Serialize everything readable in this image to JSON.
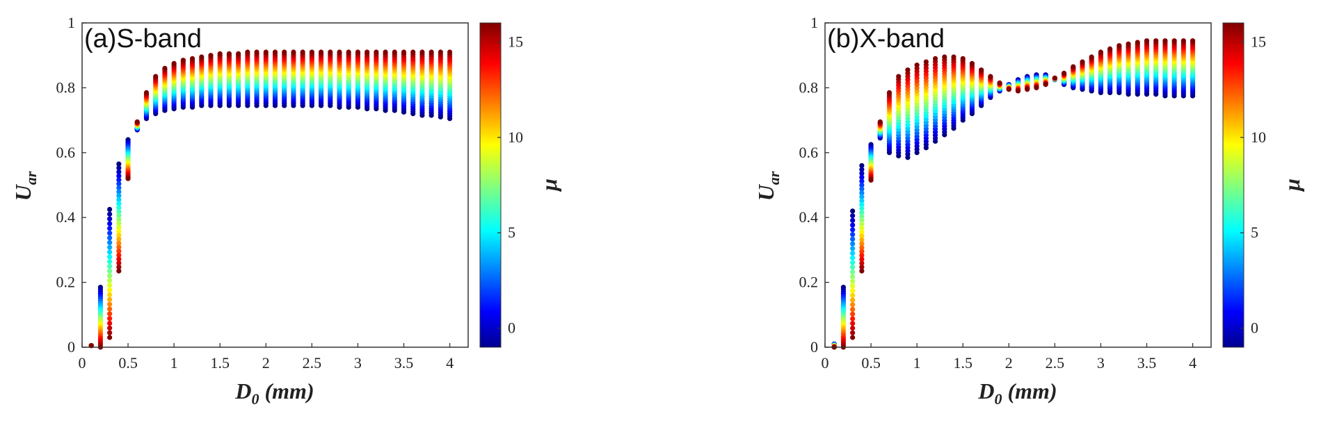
{
  "chart_data": [
    {
      "type": "scatter",
      "title": "(a)S-band",
      "xlabel_main": "D",
      "xlabel_sub": "0",
      "xlabel_unit": " (mm)",
      "ylabel_main": "U",
      "ylabel_sub": "ar",
      "colorbar_label": "μ",
      "xlim": [
        0,
        4.2
      ],
      "ylim": [
        0,
        1
      ],
      "xticks": [
        "0",
        "0.5",
        "1",
        "1.5",
        "2",
        "2.5",
        "3",
        "3.5",
        "4"
      ],
      "yticks": [
        "0",
        "0.2",
        "0.4",
        "0.6",
        "0.8",
        "1"
      ],
      "colorbar_ticks": [
        "0",
        "5",
        "10",
        "15"
      ],
      "colorbar_range": [
        -1,
        16
      ],
      "colormap": "jet",
      "series": [
        {
          "x": 0.1,
          "y_at_mu_min": 0.005,
          "y_at_mu_max": 0.005
        },
        {
          "x": 0.2,
          "y_at_mu_min": 0.185,
          "y_at_mu_max": 0.0
        },
        {
          "x": 0.3,
          "y_at_mu_min": 0.425,
          "y_at_mu_max": 0.03
        },
        {
          "x": 0.4,
          "y_at_mu_min": 0.565,
          "y_at_mu_max": 0.235
        },
        {
          "x": 0.5,
          "y_at_mu_min": 0.64,
          "y_at_mu_max": 0.52
        },
        {
          "x": 0.6,
          "y_at_mu_min": 0.67,
          "y_at_mu_max": 0.695
        },
        {
          "x": 0.7,
          "y_at_mu_min": 0.705,
          "y_at_mu_max": 0.785
        },
        {
          "x": 0.8,
          "y_at_mu_min": 0.72,
          "y_at_mu_max": 0.835
        },
        {
          "x": 0.9,
          "y_at_mu_min": 0.73,
          "y_at_mu_max": 0.86
        },
        {
          "x": 1.0,
          "y_at_mu_min": 0.735,
          "y_at_mu_max": 0.875
        },
        {
          "x": 1.1,
          "y_at_mu_min": 0.74,
          "y_at_mu_max": 0.885
        },
        {
          "x": 1.2,
          "y_at_mu_min": 0.74,
          "y_at_mu_max": 0.89
        },
        {
          "x": 1.3,
          "y_at_mu_min": 0.745,
          "y_at_mu_max": 0.895
        },
        {
          "x": 1.4,
          "y_at_mu_min": 0.745,
          "y_at_mu_max": 0.9
        },
        {
          "x": 1.5,
          "y_at_mu_min": 0.745,
          "y_at_mu_max": 0.905
        },
        {
          "x": 1.6,
          "y_at_mu_min": 0.745,
          "y_at_mu_max": 0.905
        },
        {
          "x": 1.7,
          "y_at_mu_min": 0.745,
          "y_at_mu_max": 0.905
        },
        {
          "x": 1.8,
          "y_at_mu_min": 0.745,
          "y_at_mu_max": 0.91
        },
        {
          "x": 1.9,
          "y_at_mu_min": 0.745,
          "y_at_mu_max": 0.91
        },
        {
          "x": 2.0,
          "y_at_mu_min": 0.745,
          "y_at_mu_max": 0.91
        },
        {
          "x": 2.1,
          "y_at_mu_min": 0.745,
          "y_at_mu_max": 0.91
        },
        {
          "x": 2.2,
          "y_at_mu_min": 0.745,
          "y_at_mu_max": 0.91
        },
        {
          "x": 2.3,
          "y_at_mu_min": 0.745,
          "y_at_mu_max": 0.91
        },
        {
          "x": 2.4,
          "y_at_mu_min": 0.745,
          "y_at_mu_max": 0.91
        },
        {
          "x": 2.5,
          "y_at_mu_min": 0.745,
          "y_at_mu_max": 0.91
        },
        {
          "x": 2.6,
          "y_at_mu_min": 0.745,
          "y_at_mu_max": 0.91
        },
        {
          "x": 2.7,
          "y_at_mu_min": 0.745,
          "y_at_mu_max": 0.91
        },
        {
          "x": 2.8,
          "y_at_mu_min": 0.74,
          "y_at_mu_max": 0.91
        },
        {
          "x": 2.9,
          "y_at_mu_min": 0.74,
          "y_at_mu_max": 0.91
        },
        {
          "x": 3.0,
          "y_at_mu_min": 0.74,
          "y_at_mu_max": 0.91
        },
        {
          "x": 3.1,
          "y_at_mu_min": 0.735,
          "y_at_mu_max": 0.91
        },
        {
          "x": 3.2,
          "y_at_mu_min": 0.735,
          "y_at_mu_max": 0.91
        },
        {
          "x": 3.3,
          "y_at_mu_min": 0.73,
          "y_at_mu_max": 0.91
        },
        {
          "x": 3.4,
          "y_at_mu_min": 0.73,
          "y_at_mu_max": 0.91
        },
        {
          "x": 3.5,
          "y_at_mu_min": 0.725,
          "y_at_mu_max": 0.91
        },
        {
          "x": 3.6,
          "y_at_mu_min": 0.72,
          "y_at_mu_max": 0.91
        },
        {
          "x": 3.7,
          "y_at_mu_min": 0.715,
          "y_at_mu_max": 0.91
        },
        {
          "x": 3.8,
          "y_at_mu_min": 0.715,
          "y_at_mu_max": 0.91
        },
        {
          "x": 3.9,
          "y_at_mu_min": 0.71,
          "y_at_mu_max": 0.91
        },
        {
          "x": 4.0,
          "y_at_mu_min": 0.705,
          "y_at_mu_max": 0.91
        }
      ]
    },
    {
      "type": "scatter",
      "title": "(b)X-band",
      "xlabel_main": "D",
      "xlabel_sub": "0",
      "xlabel_unit": " (mm)",
      "ylabel_main": "U",
      "ylabel_sub": "ar",
      "colorbar_label": "μ",
      "xlim": [
        0,
        4.2
      ],
      "ylim": [
        0,
        1
      ],
      "xticks": [
        "0",
        "0.5",
        "1",
        "1.5",
        "2",
        "2.5",
        "3",
        "3.5",
        "4"
      ],
      "yticks": [
        "0",
        "0.2",
        "0.4",
        "0.6",
        "0.8",
        "1"
      ],
      "colorbar_ticks": [
        "0",
        "5",
        "10",
        "15"
      ],
      "colorbar_range": [
        -1,
        16
      ],
      "colormap": "jet",
      "series": [
        {
          "x": 0.1,
          "y_at_mu_min": 0.01,
          "y_at_mu_max": 0.0
        },
        {
          "x": 0.2,
          "y_at_mu_min": 0.185,
          "y_at_mu_max": 0.0
        },
        {
          "x": 0.3,
          "y_at_mu_min": 0.42,
          "y_at_mu_max": 0.03
        },
        {
          "x": 0.4,
          "y_at_mu_min": 0.56,
          "y_at_mu_max": 0.235
        },
        {
          "x": 0.5,
          "y_at_mu_min": 0.625,
          "y_at_mu_max": 0.515
        },
        {
          "x": 0.6,
          "y_at_mu_min": 0.645,
          "y_at_mu_max": 0.695
        },
        {
          "x": 0.7,
          "y_at_mu_min": 0.6,
          "y_at_mu_max": 0.785
        },
        {
          "x": 0.8,
          "y_at_mu_min": 0.59,
          "y_at_mu_max": 0.835
        },
        {
          "x": 0.9,
          "y_at_mu_min": 0.585,
          "y_at_mu_max": 0.855
        },
        {
          "x": 1.0,
          "y_at_mu_min": 0.6,
          "y_at_mu_max": 0.87
        },
        {
          "x": 1.1,
          "y_at_mu_min": 0.615,
          "y_at_mu_max": 0.88
        },
        {
          "x": 1.2,
          "y_at_mu_min": 0.635,
          "y_at_mu_max": 0.89
        },
        {
          "x": 1.3,
          "y_at_mu_min": 0.655,
          "y_at_mu_max": 0.895
        },
        {
          "x": 1.4,
          "y_at_mu_min": 0.675,
          "y_at_mu_max": 0.895
        },
        {
          "x": 1.5,
          "y_at_mu_min": 0.7,
          "y_at_mu_max": 0.89
        },
        {
          "x": 1.6,
          "y_at_mu_min": 0.72,
          "y_at_mu_max": 0.875
        },
        {
          "x": 1.7,
          "y_at_mu_min": 0.745,
          "y_at_mu_max": 0.855
        },
        {
          "x": 1.8,
          "y_at_mu_min": 0.77,
          "y_at_mu_max": 0.835
        },
        {
          "x": 1.9,
          "y_at_mu_min": 0.79,
          "y_at_mu_max": 0.815
        },
        {
          "x": 2.0,
          "y_at_mu_min": 0.81,
          "y_at_mu_max": 0.795
        },
        {
          "x": 2.1,
          "y_at_mu_min": 0.825,
          "y_at_mu_max": 0.79
        },
        {
          "x": 2.2,
          "y_at_mu_min": 0.835,
          "y_at_mu_max": 0.795
        },
        {
          "x": 2.3,
          "y_at_mu_min": 0.84,
          "y_at_mu_max": 0.8
        },
        {
          "x": 2.4,
          "y_at_mu_min": 0.84,
          "y_at_mu_max": 0.81
        },
        {
          "x": 2.5,
          "y_at_mu_min": 0.825,
          "y_at_mu_max": 0.83
        },
        {
          "x": 2.6,
          "y_at_mu_min": 0.81,
          "y_at_mu_max": 0.845
        },
        {
          "x": 2.7,
          "y_at_mu_min": 0.8,
          "y_at_mu_max": 0.865
        },
        {
          "x": 2.8,
          "y_at_mu_min": 0.795,
          "y_at_mu_max": 0.88
        },
        {
          "x": 2.9,
          "y_at_mu_min": 0.79,
          "y_at_mu_max": 0.895
        },
        {
          "x": 3.0,
          "y_at_mu_min": 0.785,
          "y_at_mu_max": 0.91
        },
        {
          "x": 3.1,
          "y_at_mu_min": 0.785,
          "y_at_mu_max": 0.92
        },
        {
          "x": 3.2,
          "y_at_mu_min": 0.785,
          "y_at_mu_max": 0.93
        },
        {
          "x": 3.3,
          "y_at_mu_min": 0.78,
          "y_at_mu_max": 0.935
        },
        {
          "x": 3.4,
          "y_at_mu_min": 0.78,
          "y_at_mu_max": 0.94
        },
        {
          "x": 3.5,
          "y_at_mu_min": 0.78,
          "y_at_mu_max": 0.945
        },
        {
          "x": 3.6,
          "y_at_mu_min": 0.78,
          "y_at_mu_max": 0.945
        },
        {
          "x": 3.7,
          "y_at_mu_min": 0.775,
          "y_at_mu_max": 0.945
        },
        {
          "x": 3.8,
          "y_at_mu_min": 0.775,
          "y_at_mu_max": 0.945
        },
        {
          "x": 3.9,
          "y_at_mu_min": 0.775,
          "y_at_mu_max": 0.945
        },
        {
          "x": 4.0,
          "y_at_mu_min": 0.775,
          "y_at_mu_max": 0.945
        }
      ]
    }
  ]
}
